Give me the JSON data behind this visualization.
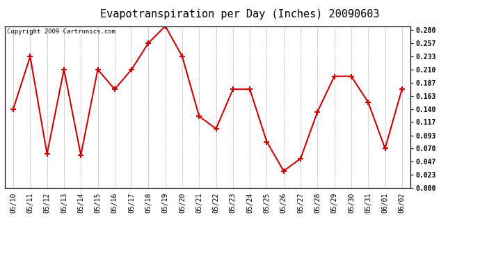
{
  "title": "Evapotranspiration per Day (Inches) 20090603",
  "copyright": "Copyright 2009 Cartronics.com",
  "dates": [
    "05/10",
    "05/11",
    "05/12",
    "05/13",
    "05/14",
    "05/15",
    "05/16",
    "05/17",
    "05/18",
    "05/19",
    "05/20",
    "05/21",
    "05/22",
    "05/23",
    "05/24",
    "05/25",
    "05/26",
    "05/27",
    "05/28",
    "05/29",
    "05/30",
    "05/31",
    "06/01",
    "06/02"
  ],
  "values": [
    0.14,
    0.233,
    0.06,
    0.21,
    0.058,
    0.21,
    0.175,
    0.21,
    0.257,
    0.287,
    0.233,
    0.127,
    0.105,
    0.175,
    0.175,
    0.082,
    0.03,
    0.052,
    0.135,
    0.198,
    0.198,
    0.152,
    0.07,
    0.175
  ],
  "ylim": [
    0.0,
    0.287
  ],
  "yticks": [
    0.0,
    0.023,
    0.047,
    0.07,
    0.093,
    0.117,
    0.14,
    0.163,
    0.187,
    0.21,
    0.233,
    0.257,
    0.28
  ],
  "line_color": "#cc0000",
  "marker": "+",
  "marker_size": 6,
  "marker_linewidth": 1.5,
  "bg_color": "#ffffff",
  "grid_color": "#aaaaaa",
  "title_fontsize": 11,
  "tick_fontsize": 7,
  "copyright_fontsize": 6.5,
  "line_width": 1.5
}
